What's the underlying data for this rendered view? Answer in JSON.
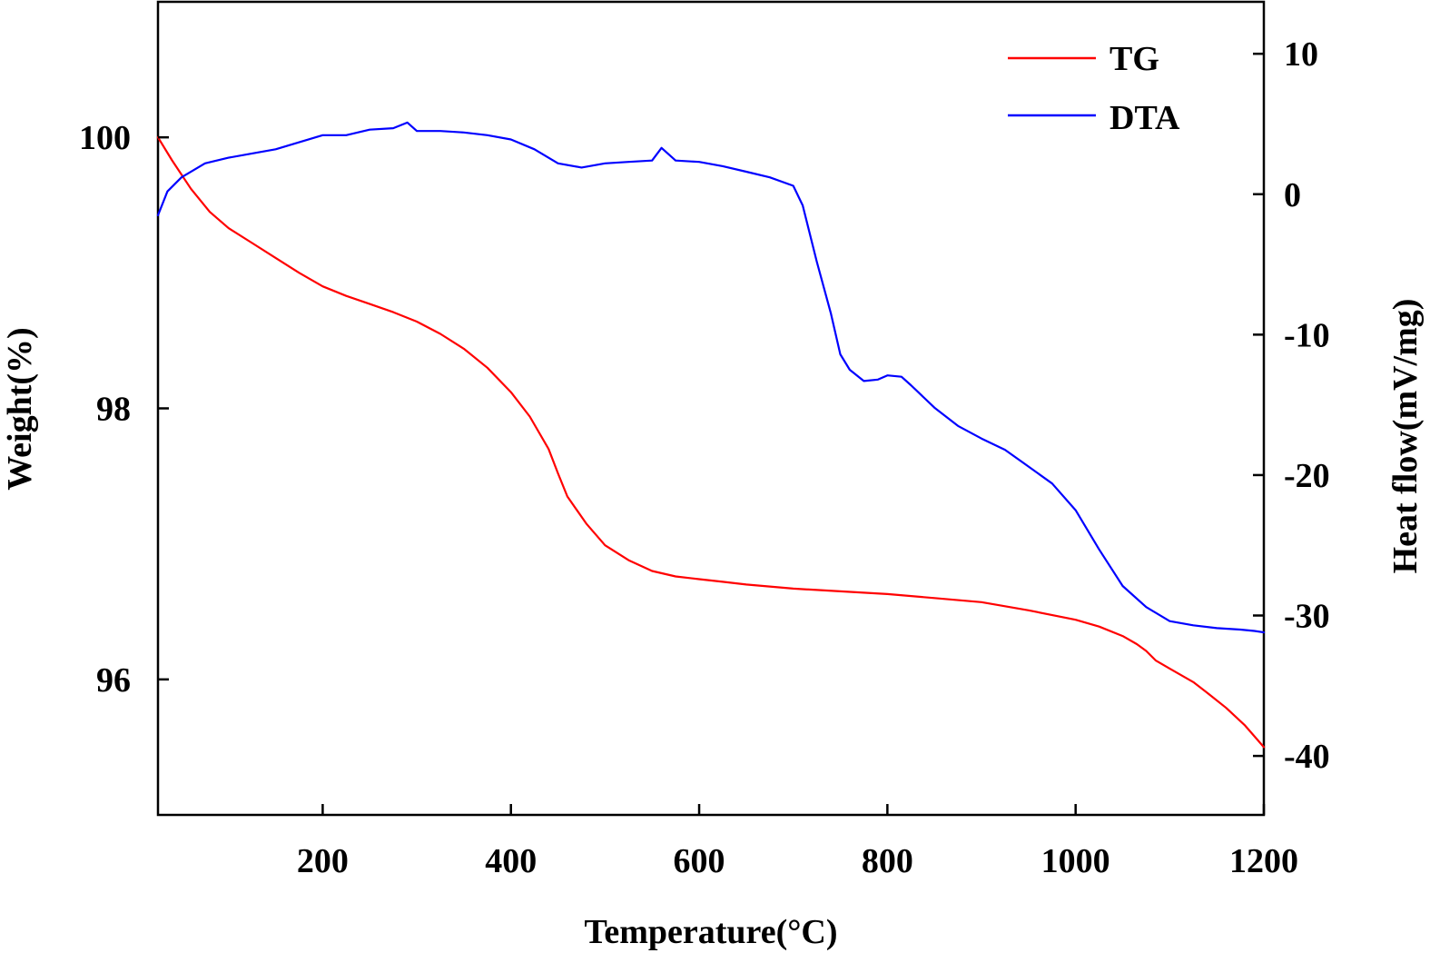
{
  "chart_data": {
    "type": "line",
    "xlabel": "Temperature(°C)",
    "ylabel_left": "Weight(%)",
    "ylabel_right": "Heat flow(mV/mg)",
    "xlim": [
      25,
      1200
    ],
    "ylim_left": [
      95.0,
      101.0
    ],
    "ylim_right": [
      -44.2,
      13.7
    ],
    "x_ticks": [
      200,
      400,
      600,
      800,
      1000,
      1200
    ],
    "y_left_ticks": [
      96,
      98,
      100
    ],
    "y_right_ticks": [
      10,
      0,
      -10,
      -20,
      -30,
      -40
    ],
    "grid": false,
    "legend_position": "top-right",
    "series": [
      {
        "name": "TG",
        "axis": "left",
        "color": "#ff0000",
        "x": [
          25,
          40,
          60,
          80,
          100,
          125,
          150,
          175,
          200,
          225,
          250,
          275,
          300,
          325,
          350,
          375,
          400,
          420,
          440,
          450,
          460,
          480,
          500,
          525,
          550,
          575,
          600,
          625,
          650,
          700,
          750,
          800,
          850,
          900,
          950,
          1000,
          1025,
          1050,
          1065,
          1075,
          1085,
          1100,
          1125,
          1140,
          1160,
          1180,
          1200
        ],
        "y": [
          100.0,
          99.83,
          99.62,
          99.45,
          99.33,
          99.22,
          99.11,
          99.0,
          98.9,
          98.83,
          98.77,
          98.71,
          98.64,
          98.55,
          98.44,
          98.3,
          98.12,
          97.94,
          97.7,
          97.52,
          97.35,
          97.15,
          96.99,
          96.88,
          96.8,
          96.76,
          96.74,
          96.72,
          96.7,
          96.67,
          96.65,
          96.63,
          96.6,
          96.57,
          96.51,
          96.44,
          96.39,
          96.32,
          96.26,
          96.21,
          96.14,
          96.08,
          95.98,
          95.9,
          95.79,
          95.66,
          95.5
        ]
      },
      {
        "name": "DTA",
        "axis": "right",
        "color": "#0000ff",
        "x": [
          25,
          35,
          50,
          75,
          100,
          125,
          150,
          175,
          200,
          225,
          250,
          275,
          290,
          300,
          325,
          350,
          375,
          400,
          425,
          450,
          475,
          500,
          525,
          550,
          560,
          575,
          600,
          625,
          650,
          675,
          700,
          710,
          725,
          740,
          750,
          760,
          775,
          790,
          800,
          815,
          825,
          850,
          875,
          900,
          925,
          950,
          975,
          1000,
          1025,
          1050,
          1075,
          1100,
          1125,
          1150,
          1175,
          1190,
          1200
        ],
        "y": [
          -1.5,
          0.2,
          1.2,
          2.2,
          2.6,
          2.9,
          3.2,
          3.7,
          4.2,
          4.2,
          4.6,
          4.7,
          5.1,
          4.5,
          4.5,
          4.4,
          4.2,
          3.9,
          3.2,
          2.2,
          1.9,
          2.2,
          2.3,
          2.4,
          3.3,
          2.4,
          2.3,
          2.0,
          1.6,
          1.2,
          0.6,
          -0.8,
          -4.8,
          -8.5,
          -11.4,
          -12.5,
          -13.3,
          -13.2,
          -12.9,
          -13.0,
          -13.6,
          -15.2,
          -16.5,
          -17.4,
          -18.2,
          -19.4,
          -20.6,
          -22.5,
          -25.3,
          -27.9,
          -29.4,
          -30.4,
          -30.7,
          -30.9,
          -31.0,
          -31.1,
          -31.2
        ]
      }
    ]
  }
}
